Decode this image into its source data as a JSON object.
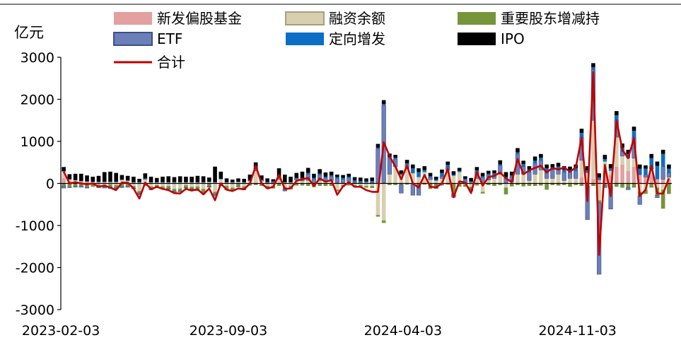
{
  "chart_data": {
    "type": "bar",
    "subtype": "stacked bar with total line",
    "unit_label": "亿元",
    "x_tick_labels": [
      "2023-02-03",
      "2023-09-03",
      "2024-04-03",
      "2024-11-03"
    ],
    "ylim": [
      -3000,
      3000
    ],
    "y_ticks": [
      -3000,
      -2000,
      -1000,
      0,
      1000,
      2000,
      3000
    ],
    "grid": false,
    "legend_position": "top",
    "colors": {
      "新发偏股基金": "#e3a0a0",
      "融资余额": "#d7cfb0",
      "重要股东增减持": "#76953a",
      "ETF": "#6b7fb8",
      "定向增发": "#0b6fc6",
      "IPO": "#000000",
      "合计": "#c00000"
    },
    "series": [
      {
        "name": "新发偏股基金",
        "kind": "bar"
      },
      {
        "name": "融资余额",
        "kind": "bar"
      },
      {
        "name": "重要股东增减持",
        "kind": "bar"
      },
      {
        "name": "ETF",
        "kind": "bar"
      },
      {
        "name": "定向增发",
        "kind": "bar"
      },
      {
        "name": "IPO",
        "kind": "bar"
      },
      {
        "name": "合计",
        "kind": "line"
      }
    ],
    "weeks": [
      {
        "fund": 130,
        "margin": 150,
        "share": -60,
        "etf": -50,
        "pp": 10,
        "ipo": 100,
        "total": 280
      },
      {
        "fund": 60,
        "margin": 30,
        "share": -90,
        "etf": -10,
        "pp": 10,
        "ipo": 120,
        "total": 0
      },
      {
        "fund": 50,
        "margin": 20,
        "share": -70,
        "etf": -20,
        "pp": 10,
        "ipo": 150,
        "total": 30
      },
      {
        "fund": 50,
        "margin": 0,
        "share": -60,
        "etf": -30,
        "pp": 10,
        "ipo": 170,
        "total": 0
      },
      {
        "fund": 40,
        "margin": -20,
        "share": -70,
        "etf": -20,
        "pp": 10,
        "ipo": 140,
        "total": -20
      },
      {
        "fund": 30,
        "margin": -20,
        "share": -60,
        "etf": 0,
        "pp": 10,
        "ipo": 120,
        "total": 0
      },
      {
        "fund": 30,
        "margin": -30,
        "share": -50,
        "etf": -20,
        "pp": 10,
        "ipo": 140,
        "total": -80
      },
      {
        "fund": 30,
        "margin": -30,
        "share": -50,
        "etf": -30,
        "pp": 10,
        "ipo": 230,
        "total": -50
      },
      {
        "fund": 30,
        "margin": -20,
        "share": -60,
        "etf": -40,
        "pp": 10,
        "ipo": 240,
        "total": -100
      },
      {
        "fund": 30,
        "margin": -40,
        "share": -60,
        "etf": -30,
        "pp": 10,
        "ipo": 210,
        "total": -160
      },
      {
        "fund": 30,
        "margin": 50,
        "share": -70,
        "etf": -30,
        "pp": 10,
        "ipo": 110,
        "total": 20
      },
      {
        "fund": 20,
        "margin": 40,
        "share": -70,
        "etf": -20,
        "pp": 10,
        "ipo": 110,
        "total": 20
      },
      {
        "fund": 20,
        "margin": -60,
        "share": -50,
        "etf": -20,
        "pp": 10,
        "ipo": 130,
        "total": -120
      },
      {
        "fund": 20,
        "margin": -180,
        "share": -50,
        "etf": -40,
        "pp": 10,
        "ipo": 80,
        "total": -360
      },
      {
        "fund": 20,
        "margin": 80,
        "share": -60,
        "etf": 10,
        "pp": 10,
        "ipo": 120,
        "total": 20
      },
      {
        "fund": 20,
        "margin": -70,
        "share": -60,
        "etf": -20,
        "pp": 10,
        "ipo": 130,
        "total": -140
      },
      {
        "fund": 20,
        "margin": -40,
        "share": -50,
        "etf": -10,
        "pp": 10,
        "ipo": 100,
        "total": -80
      },
      {
        "fund": 20,
        "margin": -70,
        "share": -50,
        "etf": -10,
        "pp": 10,
        "ipo": 130,
        "total": -130
      },
      {
        "fund": 20,
        "margin": -60,
        "share": -60,
        "etf": -20,
        "pp": 10,
        "ipo": 140,
        "total": -160
      },
      {
        "fund": 20,
        "margin": -130,
        "share": -50,
        "etf": -20,
        "pp": 10,
        "ipo": 120,
        "total": -230
      },
      {
        "fund": 20,
        "margin": -120,
        "share": -60,
        "etf": -20,
        "pp": 10,
        "ipo": 140,
        "total": -240
      },
      {
        "fund": 20,
        "margin": -40,
        "share": -60,
        "etf": -10,
        "pp": 10,
        "ipo": 130,
        "total": -130
      },
      {
        "fund": 20,
        "margin": -80,
        "share": -50,
        "etf": -10,
        "pp": 10,
        "ipo": 130,
        "total": -170
      },
      {
        "fund": 20,
        "margin": -70,
        "share": -80,
        "etf": -20,
        "pp": 10,
        "ipo": 150,
        "total": -140
      },
      {
        "fund": 20,
        "margin": -130,
        "share": -100,
        "etf": -20,
        "pp": 10,
        "ipo": 140,
        "total": -260
      },
      {
        "fund": 20,
        "margin": 10,
        "share": -70,
        "etf": -20,
        "pp": 10,
        "ipo": 100,
        "total": -120
      },
      {
        "fund": 20,
        "margin": -200,
        "share": -50,
        "etf": -50,
        "pp": 10,
        "ipo": 370,
        "total": -400
      },
      {
        "fund": 20,
        "margin": 80,
        "share": -40,
        "etf": -20,
        "pp": 10,
        "ipo": 170,
        "total": 0
      },
      {
        "fund": 20,
        "margin": -60,
        "share": -80,
        "etf": -10,
        "pp": 10,
        "ipo": 90,
        "total": -150
      },
      {
        "fund": 20,
        "margin": -100,
        "share": -60,
        "etf": -10,
        "pp": 10,
        "ipo": 60,
        "total": -180
      },
      {
        "fund": 20,
        "margin": 10,
        "share": -70,
        "etf": -10,
        "pp": 10,
        "ipo": 80,
        "total": -120
      },
      {
        "fund": 20,
        "margin": -70,
        "share": -70,
        "etf": -10,
        "pp": 10,
        "ipo": 80,
        "total": -140
      },
      {
        "fund": 20,
        "margin": 40,
        "share": -50,
        "etf": 10,
        "pp": 10,
        "ipo": 130,
        "total": 0
      },
      {
        "fund": 20,
        "margin": 280,
        "share": -40,
        "etf": 80,
        "pp": 10,
        "ipo": 110,
        "total": 420
      },
      {
        "fund": 20,
        "margin": 40,
        "share": -60,
        "etf": 20,
        "pp": 10,
        "ipo": 100,
        "total": 0
      },
      {
        "fund": 20,
        "margin": -60,
        "share": -60,
        "etf": 10,
        "pp": 10,
        "ipo": 80,
        "total": -120
      },
      {
        "fund": 20,
        "margin": -60,
        "share": -60,
        "etf": 20,
        "pp": 10,
        "ipo": 50,
        "total": -80
      },
      {
        "fund": 20,
        "margin": 80,
        "share": -60,
        "etf": 50,
        "pp": 10,
        "ipo": 200,
        "total": 200
      },
      {
        "fund": 20,
        "margin": -80,
        "share": -60,
        "etf": -40,
        "pp": 10,
        "ipo": 180,
        "total": -130
      },
      {
        "fund": 20,
        "margin": -60,
        "share": -50,
        "etf": -20,
        "pp": 10,
        "ipo": 130,
        "total": -120
      },
      {
        "fund": 20,
        "margin": 60,
        "share": -50,
        "etf": 40,
        "pp": 10,
        "ipo": 120,
        "total": 60
      },
      {
        "fund": 20,
        "margin": 40,
        "share": -50,
        "etf": 60,
        "pp": 10,
        "ipo": 150,
        "total": 100
      },
      {
        "fund": 20,
        "margin": 50,
        "share": -60,
        "etf": 150,
        "pp": 30,
        "ipo": 120,
        "total": 130
      },
      {
        "fund": 20,
        "margin": -40,
        "share": -50,
        "etf": 80,
        "pp": 30,
        "ipo": 100,
        "total": -60
      },
      {
        "fund": 20,
        "margin": 50,
        "share": -60,
        "etf": 130,
        "pp": 30,
        "ipo": 110,
        "total": 120
      },
      {
        "fund": 20,
        "margin": 20,
        "share": -60,
        "etf": 90,
        "pp": 30,
        "ipo": 100,
        "total": 40
      },
      {
        "fund": 20,
        "margin": 40,
        "share": -60,
        "etf": 100,
        "pp": 30,
        "ipo": 90,
        "total": 80
      },
      {
        "fund": 20,
        "margin": -150,
        "share": -40,
        "etf": 100,
        "pp": 30,
        "ipo": 60,
        "total": -270
      },
      {
        "fund": 20,
        "margin": -40,
        "share": -40,
        "etf": 80,
        "pp": 30,
        "ipo": 70,
        "total": -70
      },
      {
        "fund": 20,
        "margin": 20,
        "share": -50,
        "etf": 90,
        "pp": 30,
        "ipo": 70,
        "total": 30
      },
      {
        "fund": 20,
        "margin": -40,
        "share": -50,
        "etf": 20,
        "pp": 30,
        "ipo": 80,
        "total": -80
      },
      {
        "fund": 20,
        "margin": -40,
        "share": -40,
        "etf": 10,
        "pp": 30,
        "ipo": 80,
        "total": -80
      },
      {
        "fund": 20,
        "margin": -60,
        "share": -40,
        "etf": 0,
        "pp": 30,
        "ipo": 70,
        "total": -160
      },
      {
        "fund": 20,
        "margin": -60,
        "share": -50,
        "etf": 10,
        "pp": 30,
        "ipo": 80,
        "total": -200
      },
      {
        "fund": 20,
        "margin": -750,
        "share": -40,
        "etf": 800,
        "pp": 30,
        "ipo": 90,
        "total": -200
      },
      {
        "fund": 20,
        "margin": -880,
        "share": -60,
        "etf": 1840,
        "pp": 30,
        "ipo": 90,
        "total": 980
      },
      {
        "fund": 20,
        "margin": 200,
        "share": -40,
        "etf": 380,
        "pp": 30,
        "ipo": 80,
        "total": 650
      },
      {
        "fund": 20,
        "margin": 380,
        "share": -40,
        "etf": 180,
        "pp": 30,
        "ipo": 70,
        "total": 400
      },
      {
        "fund": 20,
        "margin": 180,
        "share": -30,
        "etf": -200,
        "pp": 30,
        "ipo": 80,
        "total": 100
      },
      {
        "fund": 20,
        "margin": 330,
        "share": -30,
        "etf": 100,
        "pp": 30,
        "ipo": 80,
        "total": 420
      },
      {
        "fund": 20,
        "margin": 220,
        "share": -30,
        "etf": -250,
        "pp": 120,
        "ipo": 90,
        "total": 0
      },
      {
        "fund": 20,
        "margin": 130,
        "share": -30,
        "etf": -250,
        "pp": 120,
        "ipo": 90,
        "total": -100
      },
      {
        "fund": 20,
        "margin": 250,
        "share": -30,
        "etf": 0,
        "pp": 50,
        "ipo": 90,
        "total": 200
      },
      {
        "fund": 20,
        "margin": 70,
        "share": -130,
        "etf": 50,
        "pp": 30,
        "ipo": 80,
        "total": -80
      },
      {
        "fund": 20,
        "margin": 40,
        "share": -100,
        "etf": -20,
        "pp": 30,
        "ipo": 70,
        "total": -90
      },
      {
        "fund": 20,
        "margin": 100,
        "share": -50,
        "etf": 50,
        "pp": 80,
        "ipo": 80,
        "total": 0
      },
      {
        "fund": 20,
        "margin": 300,
        "share": -30,
        "etf": 60,
        "pp": 60,
        "ipo": 80,
        "total": 350
      },
      {
        "fund": 20,
        "margin": 160,
        "share": -250,
        "etf": -80,
        "pp": 30,
        "ipo": 80,
        "total": -330
      },
      {
        "fund": 20,
        "margin": 250,
        "share": -80,
        "etf": 0,
        "pp": 30,
        "ipo": 70,
        "total": 50
      },
      {
        "fund": 20,
        "margin": -20,
        "share": -60,
        "etf": 60,
        "pp": 30,
        "ipo": 60,
        "total": 20
      },
      {
        "fund": 20,
        "margin": -80,
        "share": -50,
        "etf": -50,
        "pp": 30,
        "ipo": 80,
        "total": -230
      },
      {
        "fund": 20,
        "margin": 100,
        "share": -50,
        "etf": 160,
        "pp": 30,
        "ipo": 80,
        "total": 270
      },
      {
        "fund": 20,
        "margin": -200,
        "share": -40,
        "etf": 120,
        "pp": 30,
        "ipo": 80,
        "total": -50
      },
      {
        "fund": 20,
        "margin": 60,
        "share": -40,
        "etf": 120,
        "pp": 30,
        "ipo": 70,
        "total": 150
      },
      {
        "fund": 20,
        "margin": 100,
        "share": -60,
        "etf": 90,
        "pp": 30,
        "ipo": 70,
        "total": 180
      },
      {
        "fund": 20,
        "margin": 200,
        "share": -40,
        "etf": 200,
        "pp": 30,
        "ipo": 100,
        "total": 260
      },
      {
        "fund": 20,
        "margin": -100,
        "share": -160,
        "etf": 100,
        "pp": 30,
        "ipo": 120,
        "total": 120
      },
      {
        "fund": 20,
        "margin": 20,
        "share": -70,
        "etf": 120,
        "pp": 30,
        "ipo": 90,
        "total": 30
      },
      {
        "fund": 20,
        "margin": 200,
        "share": -40,
        "etf": 480,
        "pp": 40,
        "ipo": 100,
        "total": 580
      },
      {
        "fund": 20,
        "margin": 200,
        "share": -70,
        "etf": 180,
        "pp": 60,
        "ipo": 80,
        "total": 220
      },
      {
        "fund": 20,
        "margin": 50,
        "share": -60,
        "etf": 200,
        "pp": 60,
        "ipo": 80,
        "total": 310
      },
      {
        "fund": 20,
        "margin": 200,
        "share": -60,
        "etf": 260,
        "pp": 60,
        "ipo": 100,
        "total": 370
      },
      {
        "fund": 20,
        "margin": 300,
        "share": -50,
        "etf": 230,
        "pp": 60,
        "ipo": 90,
        "total": 420
      },
      {
        "fund": 20,
        "margin": 100,
        "share": -150,
        "etf": 180,
        "pp": 60,
        "ipo": 90,
        "total": 260
      },
      {
        "fund": 20,
        "margin": 100,
        "share": -40,
        "etf": 200,
        "pp": 60,
        "ipo": 80,
        "total": 370
      },
      {
        "fund": 20,
        "margin": 200,
        "share": -50,
        "etf": 120,
        "pp": 60,
        "ipo": 90,
        "total": 330
      },
      {
        "fund": 20,
        "margin": 50,
        "share": -40,
        "etf": 200,
        "pp": 60,
        "ipo": 80,
        "total": 380
      },
      {
        "fund": 20,
        "margin": 100,
        "share": -80,
        "etf": 140,
        "pp": 60,
        "ipo": 80,
        "total": 280
      },
      {
        "fund": 20,
        "margin": 100,
        "share": -40,
        "etf": 180,
        "pp": 60,
        "ipo": 90,
        "total": 380
      },
      {
        "fund": 150,
        "margin": 400,
        "share": -60,
        "etf": 550,
        "pp": 100,
        "ipo": 100,
        "total": 1090
      },
      {
        "fund": 50,
        "margin": 200,
        "share": -60,
        "etf": -800,
        "pp": 60,
        "ipo": 100,
        "total": -420
      },
      {
        "fund": 100,
        "margin": 1400,
        "share": -60,
        "etf": 1200,
        "pp": 60,
        "ipo": 100,
        "total": 2650
      },
      {
        "fund": 80,
        "margin": -400,
        "share": -60,
        "etf": -1700,
        "pp": 60,
        "ipo": 100,
        "total": -1700
      },
      {
        "fund": 300,
        "margin": 220,
        "share": -50,
        "etf": -50,
        "pp": 60,
        "ipo": 100,
        "total": 440
      },
      {
        "fund": 200,
        "margin": 100,
        "share": -60,
        "etf": -550,
        "pp": 60,
        "ipo": 100,
        "total": -300
      },
      {
        "fund": 400,
        "margin": 700,
        "share": -80,
        "etf": 400,
        "pp": 120,
        "ipo": 100,
        "total": 1500
      },
      {
        "fund": 450,
        "margin": 200,
        "share": -100,
        "etf": 100,
        "pp": 100,
        "ipo": 100,
        "total": 800
      },
      {
        "fund": 300,
        "margin": 300,
        "share": -100,
        "etf": -50,
        "pp": 100,
        "ipo": 100,
        "total": 600
      },
      {
        "fund": 400,
        "margin": 200,
        "share": -100,
        "etf": 500,
        "pp": 150,
        "ipo": 100,
        "total": 1080
      },
      {
        "fund": 200,
        "margin": -200,
        "share": -100,
        "etf": -200,
        "pp": 150,
        "ipo": 100,
        "total": -300
      },
      {
        "fund": 150,
        "margin": -150,
        "share": -100,
        "etf": 50,
        "pp": 150,
        "ipo": 80,
        "total": -150
      },
      {
        "fund": 200,
        "margin": 150,
        "share": -100,
        "etf": 50,
        "pp": 200,
        "ipo": 100,
        "total": 420
      },
      {
        "fund": 100,
        "margin": -100,
        "share": -180,
        "etf": -60,
        "pp": 320,
        "ipo": 100,
        "total": -240
      },
      {
        "fund": 100,
        "margin": -150,
        "share": -450,
        "etf": 300,
        "pp": 300,
        "ipo": 100,
        "total": -240
      },
      {
        "fund": 100,
        "margin": 50,
        "share": -250,
        "etf": 100,
        "pp": 100,
        "ipo": 100,
        "total": 120
      }
    ]
  }
}
